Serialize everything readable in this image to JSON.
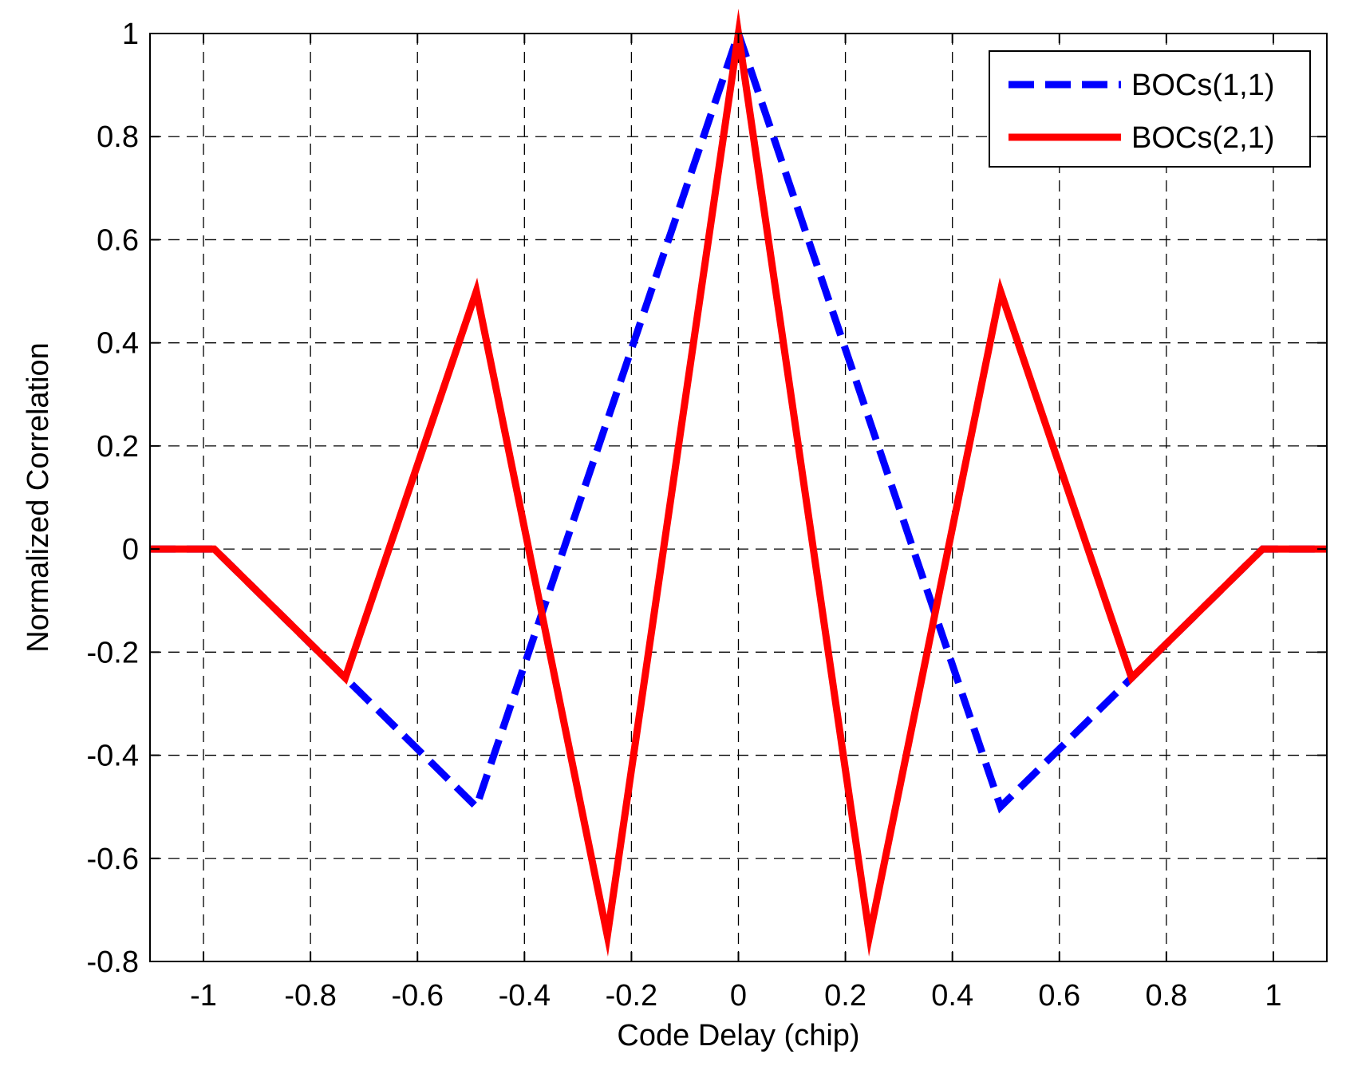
{
  "chart_data": {
    "type": "line",
    "xlabel": "Code Delay (chip)",
    "ylabel": "Normalized Correlation",
    "xlim": [
      -1.1,
      1.1
    ],
    "ylim": [
      -0.8,
      1.0
    ],
    "xticks": [
      -1,
      -0.8,
      -0.6,
      -0.4,
      -0.2,
      0,
      0.2,
      0.4,
      0.6,
      0.8,
      1
    ],
    "xtick_labels": [
      "-1",
      "-0.8",
      "-0.6",
      "-0.4",
      "-0.2",
      "0",
      "0.2",
      "0.4",
      "0.6",
      "0.8",
      "1"
    ],
    "yticks": [
      -0.8,
      -0.6,
      -0.4,
      -0.2,
      0,
      0.2,
      0.4,
      0.6,
      0.8,
      1
    ],
    "ytick_labels": [
      "-0.8",
      "-0.6",
      "-0.4",
      "-0.2",
      "0",
      "0.2",
      "0.4",
      "0.6",
      "0.8",
      "1"
    ],
    "grid": true,
    "legend_position": "top-right",
    "series": [
      {
        "name": "BOCs(1,1)",
        "color": "#0000ff",
        "style": "dashed",
        "x": [
          -1.1,
          -0.98,
          -0.49,
          0,
          0.49,
          0.98,
          1.1
        ],
        "y": [
          0,
          0,
          -0.5,
          1,
          -0.5,
          0,
          0
        ]
      },
      {
        "name": "BOCs(2,1)",
        "color": "#ff0000",
        "style": "solid",
        "x": [
          -1.1,
          -0.98,
          -0.735,
          -0.49,
          -0.245,
          0,
          0.245,
          0.49,
          0.735,
          0.98,
          1.1
        ],
        "y": [
          0,
          0,
          -0.25,
          0.5,
          -0.75,
          1,
          -0.75,
          0.5,
          -0.25,
          0,
          0
        ]
      }
    ]
  }
}
